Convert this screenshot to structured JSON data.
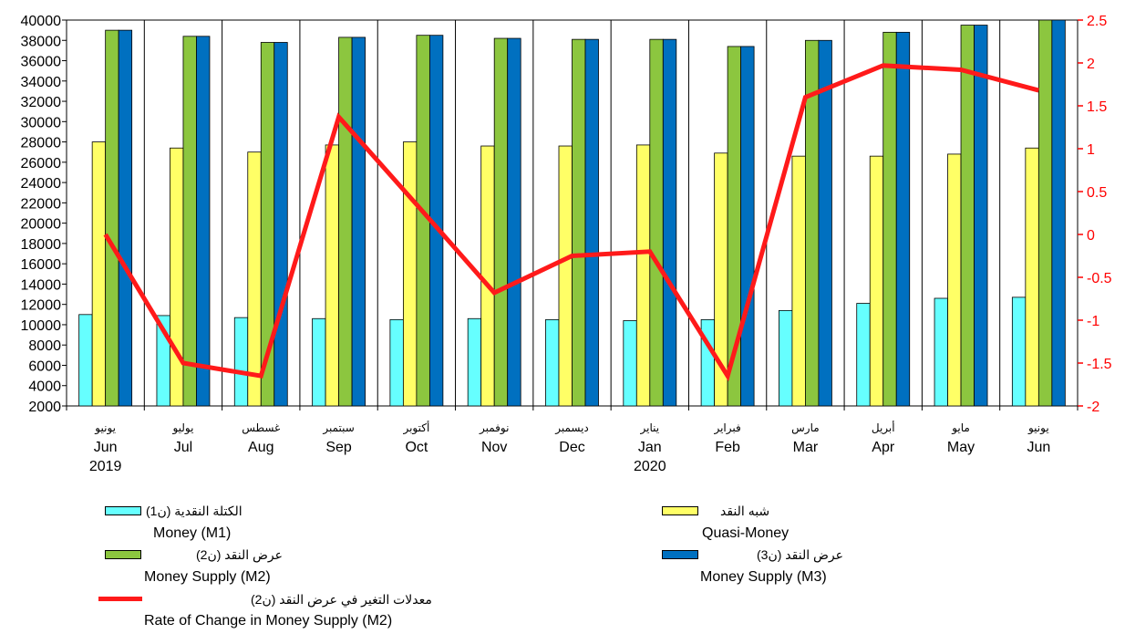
{
  "chart_data": {
    "type": "bar",
    "categories": [
      {
        "ar": "يونيو",
        "en": "Jun",
        "year": "2019"
      },
      {
        "ar": "يوليو",
        "en": "Jul",
        "year": ""
      },
      {
        "ar": "غسطس",
        "en": "Aug",
        "year": ""
      },
      {
        "ar": "سبتمبر",
        "en": "Sep",
        "year": ""
      },
      {
        "ar": "أكتوبر",
        "en": "Oct",
        "year": ""
      },
      {
        "ar": "نوفمبر",
        "en": "Nov",
        "year": ""
      },
      {
        "ar": "ديسمبر",
        "en": "Dec",
        "year": ""
      },
      {
        "ar": "يناير",
        "en": "Jan",
        "year": "2020"
      },
      {
        "ar": "فبراير",
        "en": "Feb",
        "year": ""
      },
      {
        "ar": "مارس",
        "en": "Mar",
        "year": ""
      },
      {
        "ar": "أبريل",
        "en": "Apr",
        "year": ""
      },
      {
        "ar": "مايو",
        "en": "May",
        "year": ""
      },
      {
        "ar": "يونيو",
        "en": "Jun",
        "year": ""
      }
    ],
    "series": [
      {
        "name_ar": "الكتلة النقدية (ن1)",
        "name_en": "Money (M1)",
        "color": "#66ffff",
        "values": [
          11000,
          10900,
          10700,
          10600,
          10500,
          10600,
          10500,
          10400,
          10500,
          11400,
          12100,
          12600,
          12700
        ]
      },
      {
        "name_ar": "شبه النقد",
        "name_en": "Quasi-Money",
        "color": "#ffff66",
        "values": [
          28000,
          27400,
          27000,
          27700,
          28000,
          27600,
          27600,
          27700,
          26900,
          26600,
          26600,
          26800,
          27400
        ]
      },
      {
        "name_ar": "عرض النقد (ن2)",
        "name_en": "Money Supply (M2)",
        "color": "#8cc63f",
        "values": [
          39000,
          38400,
          37800,
          38300,
          38500,
          38200,
          38100,
          38100,
          37400,
          38000,
          38800,
          39500,
          40100
        ]
      },
      {
        "name_ar": "عرض النقد (ن3)",
        "name_en": "Money Supply (M3)",
        "color": "#0070c0",
        "values": [
          39000,
          38400,
          37800,
          38300,
          38500,
          38200,
          38100,
          38100,
          37400,
          38000,
          38800,
          39500,
          40100
        ]
      }
    ],
    "line_series": {
      "name_ar": "معدلات التغير في عرض النقد (ن2)",
      "name_en": "Rate of Change in Money Supply (M2)",
      "color": "#ff1a1a",
      "axis": "right",
      "values": [
        0.0,
        -1.5,
        -1.65,
        1.37,
        0.35,
        -0.68,
        -0.25,
        -0.2,
        -1.65,
        1.6,
        1.97,
        1.92,
        1.68
      ]
    },
    "y_left": {
      "min": 2000,
      "max": 40000,
      "step": 2000
    },
    "y_right": {
      "min": -2,
      "max": 2.5,
      "step": 0.5
    },
    "colors": {
      "left_axis_text": "#000000",
      "right_axis_text": "#ff0000",
      "grid": "#000000"
    },
    "grid": "vertical category gridlines",
    "legend_position": "bottom"
  }
}
